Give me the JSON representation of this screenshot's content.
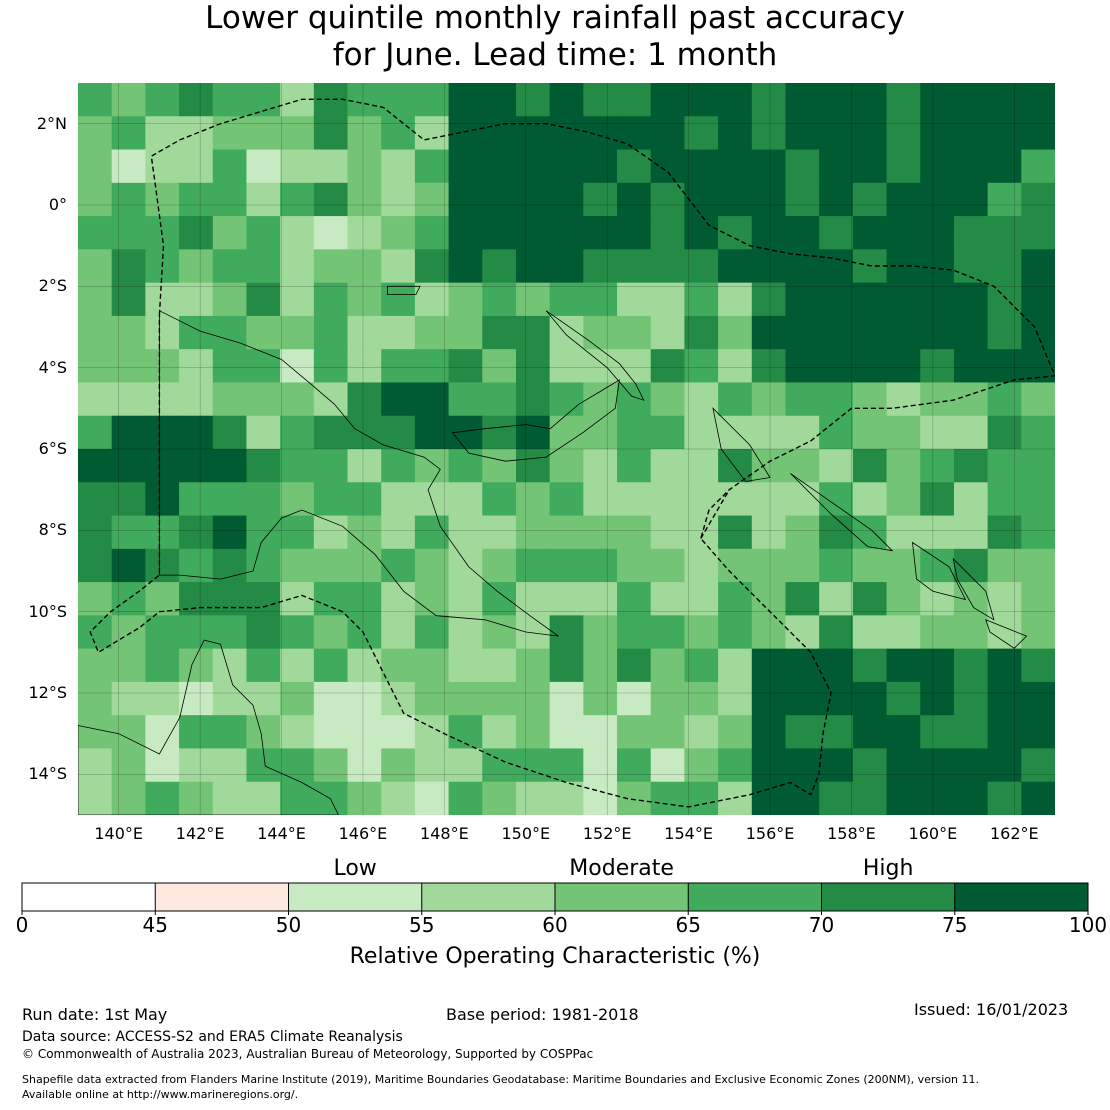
{
  "title": {
    "line1": "Lower quintile monthly rainfall past accuracy",
    "line2": "for June. Lead time: 1 month"
  },
  "map": {
    "lon_range": [
      139.0,
      163.0
    ],
    "lat_range": [
      -15.0,
      3.0
    ],
    "lat_ticks": [
      {
        "value": 2,
        "label": "2°N"
      },
      {
        "value": 0,
        "label": "0°"
      },
      {
        "value": -2,
        "label": "2°S"
      },
      {
        "value": -4,
        "label": "4°S"
      },
      {
        "value": -6,
        "label": "6°S"
      },
      {
        "value": -8,
        "label": "8°S"
      },
      {
        "value": -10,
        "label": "10°S"
      },
      {
        "value": -12,
        "label": "12°S"
      },
      {
        "value": -14,
        "label": "14°S"
      }
    ],
    "lon_ticks": [
      {
        "value": 140,
        "label": "140°E"
      },
      {
        "value": 142,
        "label": "142°E"
      },
      {
        "value": 144,
        "label": "144°E"
      },
      {
        "value": 146,
        "label": "146°E"
      },
      {
        "value": 148,
        "label": "148°E"
      },
      {
        "value": 150,
        "label": "150°E"
      },
      {
        "value": 152,
        "label": "152°E"
      },
      {
        "value": 154,
        "label": "154°E"
      },
      {
        "value": 156,
        "label": "156°E"
      },
      {
        "value": 158,
        "label": "158°E"
      },
      {
        "value": 160,
        "label": "160°E"
      },
      {
        "value": 162,
        "label": "162°E"
      }
    ],
    "eez_boundary_png": [
      [
        141.0,
        -2.7
      ],
      [
        141.1,
        -1.0
      ],
      [
        140.9,
        0.5
      ],
      [
        140.8,
        1.2
      ],
      [
        141.5,
        1.6
      ],
      [
        142.5,
        2.0
      ],
      [
        143.5,
        2.3
      ],
      [
        144.5,
        2.6
      ],
      [
        145.5,
        2.6
      ],
      [
        146.5,
        2.4
      ],
      [
        147.5,
        1.6
      ],
      [
        148.5,
        1.8
      ],
      [
        149.5,
        2.0
      ],
      [
        150.5,
        2.0
      ],
      [
        151.5,
        1.8
      ],
      [
        152.5,
        1.5
      ],
      [
        153.5,
        0.8
      ],
      [
        154.5,
        -0.5
      ],
      [
        155.5,
        -1.0
      ],
      [
        156.5,
        -1.2
      ],
      [
        157.5,
        -1.3
      ],
      [
        158.5,
        -1.5
      ],
      [
        159.5,
        -1.5
      ],
      [
        160.5,
        -1.6
      ],
      [
        161.5,
        -2.0
      ],
      [
        162.5,
        -3.0
      ],
      [
        163.0,
        -4.2
      ],
      [
        162.0,
        -4.3
      ],
      [
        160.5,
        -4.8
      ],
      [
        159.0,
        -5.0
      ],
      [
        158.0,
        -5.0
      ],
      [
        157.0,
        -5.8
      ],
      [
        156.0,
        -6.3
      ],
      [
        155.0,
        -7.0
      ],
      [
        154.5,
        -7.5
      ],
      [
        154.3,
        -8.2
      ],
      [
        155.0,
        -9.0
      ],
      [
        156.0,
        -10.0
      ],
      [
        157.0,
        -11.0
      ],
      [
        157.5,
        -12.0
      ],
      [
        157.3,
        -13.0
      ],
      [
        157.2,
        -14.0
      ],
      [
        157.0,
        -14.5
      ],
      [
        156.5,
        -14.2
      ],
      [
        155.5,
        -14.5
      ],
      [
        154.0,
        -14.8
      ],
      [
        152.5,
        -14.6
      ],
      [
        151.0,
        -14.2
      ],
      [
        149.5,
        -13.7
      ],
      [
        148.0,
        -13.0
      ],
      [
        147.0,
        -12.5
      ],
      [
        146.5,
        -11.5
      ],
      [
        146.0,
        -10.5
      ],
      [
        145.5,
        -10.0
      ],
      [
        144.5,
        -9.6
      ],
      [
        143.5,
        -9.9
      ],
      [
        142.0,
        -9.9
      ],
      [
        141.0,
        -10.0
      ],
      [
        140.5,
        -10.4
      ],
      [
        140.0,
        -10.7
      ],
      [
        139.5,
        -11.0
      ],
      [
        139.3,
        -10.5
      ],
      [
        139.8,
        -10.0
      ],
      [
        140.5,
        -9.5
      ],
      [
        141.0,
        -9.1
      ],
      [
        141.0,
        -5.0
      ],
      [
        141.0,
        -2.7
      ]
    ],
    "eez_boundary_solomon": [
      [
        154.3,
        -8.2
      ],
      [
        155.0,
        -7.0
      ]
    ],
    "land_png": [
      [
        141.0,
        -2.6
      ],
      [
        142.0,
        -3.1
      ],
      [
        143.0,
        -3.4
      ],
      [
        144.0,
        -3.8
      ],
      [
        144.6,
        -4.3
      ],
      [
        145.3,
        -4.9
      ],
      [
        145.8,
        -5.5
      ],
      [
        146.5,
        -5.9
      ],
      [
        147.5,
        -6.2
      ],
      [
        147.9,
        -6.5
      ],
      [
        147.6,
        -7.0
      ],
      [
        147.9,
        -7.9
      ],
      [
        148.6,
        -8.9
      ],
      [
        149.3,
        -9.5
      ],
      [
        150.1,
        -10.1
      ],
      [
        150.8,
        -10.6
      ],
      [
        150.0,
        -10.5
      ],
      [
        149.0,
        -10.2
      ],
      [
        147.8,
        -10.1
      ],
      [
        147.0,
        -9.5
      ],
      [
        146.3,
        -8.6
      ],
      [
        145.5,
        -7.9
      ],
      [
        144.5,
        -7.5
      ],
      [
        144.0,
        -7.7
      ],
      [
        143.5,
        -8.3
      ],
      [
        143.3,
        -9.0
      ],
      [
        142.5,
        -9.2
      ],
      [
        141.5,
        -9.1
      ],
      [
        141.0,
        -9.1
      ],
      [
        141.0,
        -2.6
      ]
    ],
    "land_newbritain": [
      [
        148.2,
        -5.6
      ],
      [
        149.0,
        -5.5
      ],
      [
        150.0,
        -5.4
      ],
      [
        150.6,
        -5.5
      ],
      [
        151.3,
        -4.9
      ],
      [
        151.8,
        -4.6
      ],
      [
        152.3,
        -4.3
      ],
      [
        152.2,
        -5.0
      ],
      [
        151.4,
        -5.6
      ],
      [
        150.5,
        -6.2
      ],
      [
        149.5,
        -6.3
      ],
      [
        148.6,
        -6.1
      ],
      [
        148.2,
        -5.6
      ]
    ],
    "land_newireland": [
      [
        150.5,
        -2.6
      ],
      [
        151.5,
        -3.3
      ],
      [
        152.3,
        -3.9
      ],
      [
        152.7,
        -4.4
      ],
      [
        152.9,
        -4.8
      ],
      [
        152.6,
        -4.7
      ],
      [
        152.0,
        -4.0
      ],
      [
        151.0,
        -3.2
      ],
      [
        150.5,
        -2.6
      ]
    ],
    "land_manus": [
      [
        146.6,
        -2.0
      ],
      [
        147.4,
        -2.0
      ],
      [
        147.3,
        -2.2
      ],
      [
        146.6,
        -2.2
      ],
      [
        146.6,
        -2.0
      ]
    ],
    "land_bougainville": [
      [
        154.6,
        -5.0
      ],
      [
        155.5,
        -5.9
      ],
      [
        156.0,
        -6.7
      ],
      [
        155.4,
        -6.8
      ],
      [
        154.8,
        -6.0
      ],
      [
        154.6,
        -5.0
      ]
    ],
    "land_solomon1": [
      [
        156.5,
        -6.6
      ],
      [
        157.5,
        -7.3
      ],
      [
        158.5,
        -8.0
      ],
      [
        159.0,
        -8.5
      ],
      [
        158.4,
        -8.4
      ],
      [
        157.5,
        -7.6
      ],
      [
        156.5,
        -6.6
      ]
    ],
    "land_solomon2": [
      [
        159.5,
        -8.3
      ],
      [
        160.4,
        -8.9
      ],
      [
        160.8,
        -9.7
      ],
      [
        160.0,
        -9.5
      ],
      [
        159.6,
        -9.2
      ],
      [
        159.5,
        -8.3
      ]
    ],
    "land_solomon3": [
      [
        160.5,
        -8.7
      ],
      [
        161.3,
        -9.5
      ],
      [
        161.5,
        -10.2
      ],
      [
        161.0,
        -9.9
      ],
      [
        160.6,
        -9.2
      ],
      [
        160.5,
        -8.7
      ]
    ],
    "land_solomon4": [
      [
        161.3,
        -10.2
      ],
      [
        162.3,
        -10.6
      ],
      [
        162.0,
        -10.9
      ],
      [
        161.4,
        -10.5
      ],
      [
        161.3,
        -10.2
      ]
    ],
    "land_capeyork": [
      [
        139.0,
        -12.8
      ],
      [
        140.0,
        -13.0
      ],
      [
        141.0,
        -13.5
      ],
      [
        141.5,
        -12.6
      ],
      [
        141.8,
        -11.3
      ],
      [
        142.1,
        -10.7
      ],
      [
        142.5,
        -10.8
      ],
      [
        142.8,
        -11.8
      ],
      [
        143.3,
        -12.3
      ],
      [
        143.5,
        -13.0
      ],
      [
        143.6,
        -13.8
      ],
      [
        144.5,
        -14.2
      ],
      [
        145.2,
        -14.6
      ],
      [
        145.4,
        -15.0
      ],
      [
        139.0,
        -15.0
      ],
      [
        139.0,
        -12.8
      ]
    ],
    "colorbar_colors": [
      "#ffffff",
      "#fde9df",
      "#c8eac2",
      "#a1d99b",
      "#74c476",
      "#41ab5d",
      "#238b45",
      "#005a32"
    ],
    "accent_dark_green": "#005a32"
  },
  "colorbar": {
    "bounds": [
      0,
      45,
      50,
      55,
      60,
      65,
      70,
      75,
      100
    ],
    "tick_labels": [
      "0",
      "45",
      "50",
      "55",
      "60",
      "65",
      "70",
      "75",
      "100"
    ],
    "categories": [
      {
        "label": "Low",
        "center_value": 52.5
      },
      {
        "label": "Moderate",
        "center_value": 62.5
      },
      {
        "label": "High",
        "center_value": 72.5
      }
    ],
    "title": "Relative Operating Characteristic (%)"
  },
  "footer": {
    "run_date": "Run date: 1st May",
    "base_period": "Base period: 1981-2018",
    "issued": "Issued: 16/01/2023",
    "data_source": "Data source: ACCESS-S2 and ERA5 Climate Reanalysis",
    "copyright": "© Commonwealth of Australia 2023, Australian Bureau of Meteorology, Supported by COSPPac",
    "shapefile_line1": "Shapefile data extracted from Flanders Marine Institute (2019), Maritime Boundaries Geodatabase: Maritime Boundaries and Exclusive Economic Zones (200NM), version 11.",
    "shapefile_line2": "Available online at http://www.marineregions.org/."
  }
}
